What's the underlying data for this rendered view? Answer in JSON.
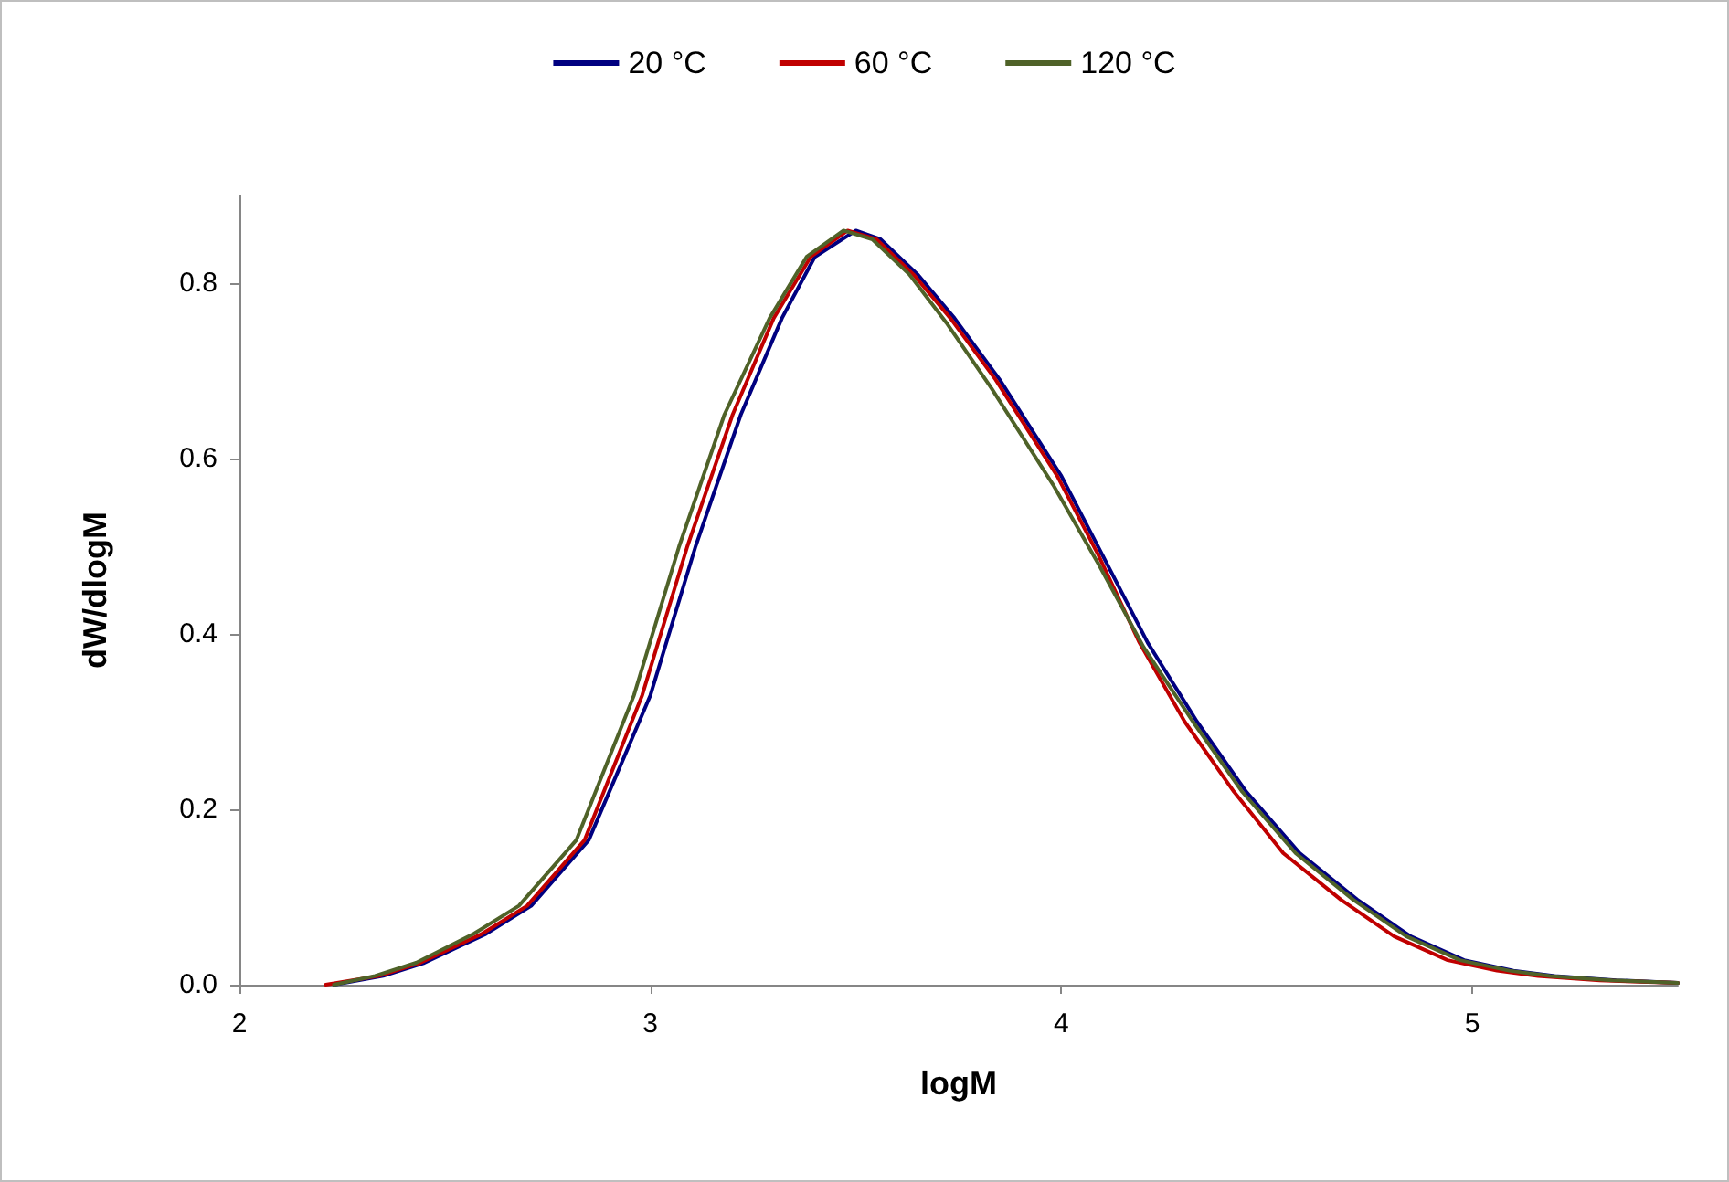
{
  "chart_data": {
    "type": "line",
    "xlabel": "logM",
    "ylabel": "dW/dlogM",
    "xlim": [
      2,
      5.5
    ],
    "xticks": [
      2,
      3,
      4,
      5
    ],
    "ylim": [
      0,
      0.9
    ],
    "yticks": [
      {
        "value": 0,
        "label": "0.0"
      },
      0.2,
      0.4,
      0.6,
      0.8
    ],
    "grid": false,
    "legend": "top",
    "marker": "none",
    "line_style": "solid",
    "series": [
      {
        "name": "20 °C",
        "color": "#000080",
        "x": [
          2.23,
          2.35,
          2.45,
          2.6,
          2.71,
          2.85,
          3.0,
          3.11,
          3.22,
          3.32,
          3.4,
          3.5,
          3.56,
          3.65,
          3.74,
          3.85,
          4.0,
          4.1,
          4.21,
          4.33,
          4.45,
          4.58,
          4.72,
          4.85,
          4.98,
          5.1,
          5.2,
          5.35,
          5.5
        ],
        "values": [
          0,
          0.01,
          0.025,
          0.058,
          0.09,
          0.165,
          0.33,
          0.5,
          0.65,
          0.76,
          0.83,
          0.86,
          0.85,
          0.81,
          0.76,
          0.69,
          0.58,
          0.49,
          0.39,
          0.3,
          0.22,
          0.15,
          0.097,
          0.055,
          0.028,
          0.016,
          0.01,
          0.005,
          0.002
        ]
      },
      {
        "name": "60 °C",
        "color": "#c00000",
        "x": [
          2.21,
          2.34,
          2.44,
          2.59,
          2.7,
          2.84,
          2.98,
          3.09,
          3.2,
          3.3,
          3.39,
          3.48,
          3.55,
          3.64,
          3.73,
          3.84,
          3.99,
          4.09,
          4.19,
          4.3,
          4.42,
          4.54,
          4.68,
          4.81,
          4.94,
          5.06,
          5.16,
          5.31,
          5.5
        ],
        "values": [
          0,
          0.01,
          0.025,
          0.058,
          0.09,
          0.165,
          0.33,
          0.5,
          0.65,
          0.76,
          0.83,
          0.86,
          0.85,
          0.81,
          0.76,
          0.69,
          0.58,
          0.49,
          0.39,
          0.3,
          0.22,
          0.15,
          0.097,
          0.055,
          0.028,
          0.016,
          0.01,
          0.005,
          0.002
        ]
      },
      {
        "name": "120 °C",
        "color": "#4f6228",
        "x": [
          2.23,
          2.33,
          2.43,
          2.57,
          2.68,
          2.82,
          2.96,
          3.07,
          3.18,
          3.29,
          3.38,
          3.47,
          3.54,
          3.63,
          3.72,
          3.83,
          3.98,
          4.09,
          4.2,
          4.32,
          4.44,
          4.57,
          4.71,
          4.84,
          4.97,
          5.09,
          5.19,
          5.34,
          5.5
        ],
        "values": [
          0,
          0.01,
          0.025,
          0.058,
          0.09,
          0.165,
          0.33,
          0.5,
          0.65,
          0.76,
          0.83,
          0.86,
          0.85,
          0.81,
          0.755,
          0.68,
          0.57,
          0.48,
          0.385,
          0.3,
          0.22,
          0.15,
          0.097,
          0.055,
          0.028,
          0.016,
          0.01,
          0.005,
          0.002
        ]
      }
    ]
  }
}
